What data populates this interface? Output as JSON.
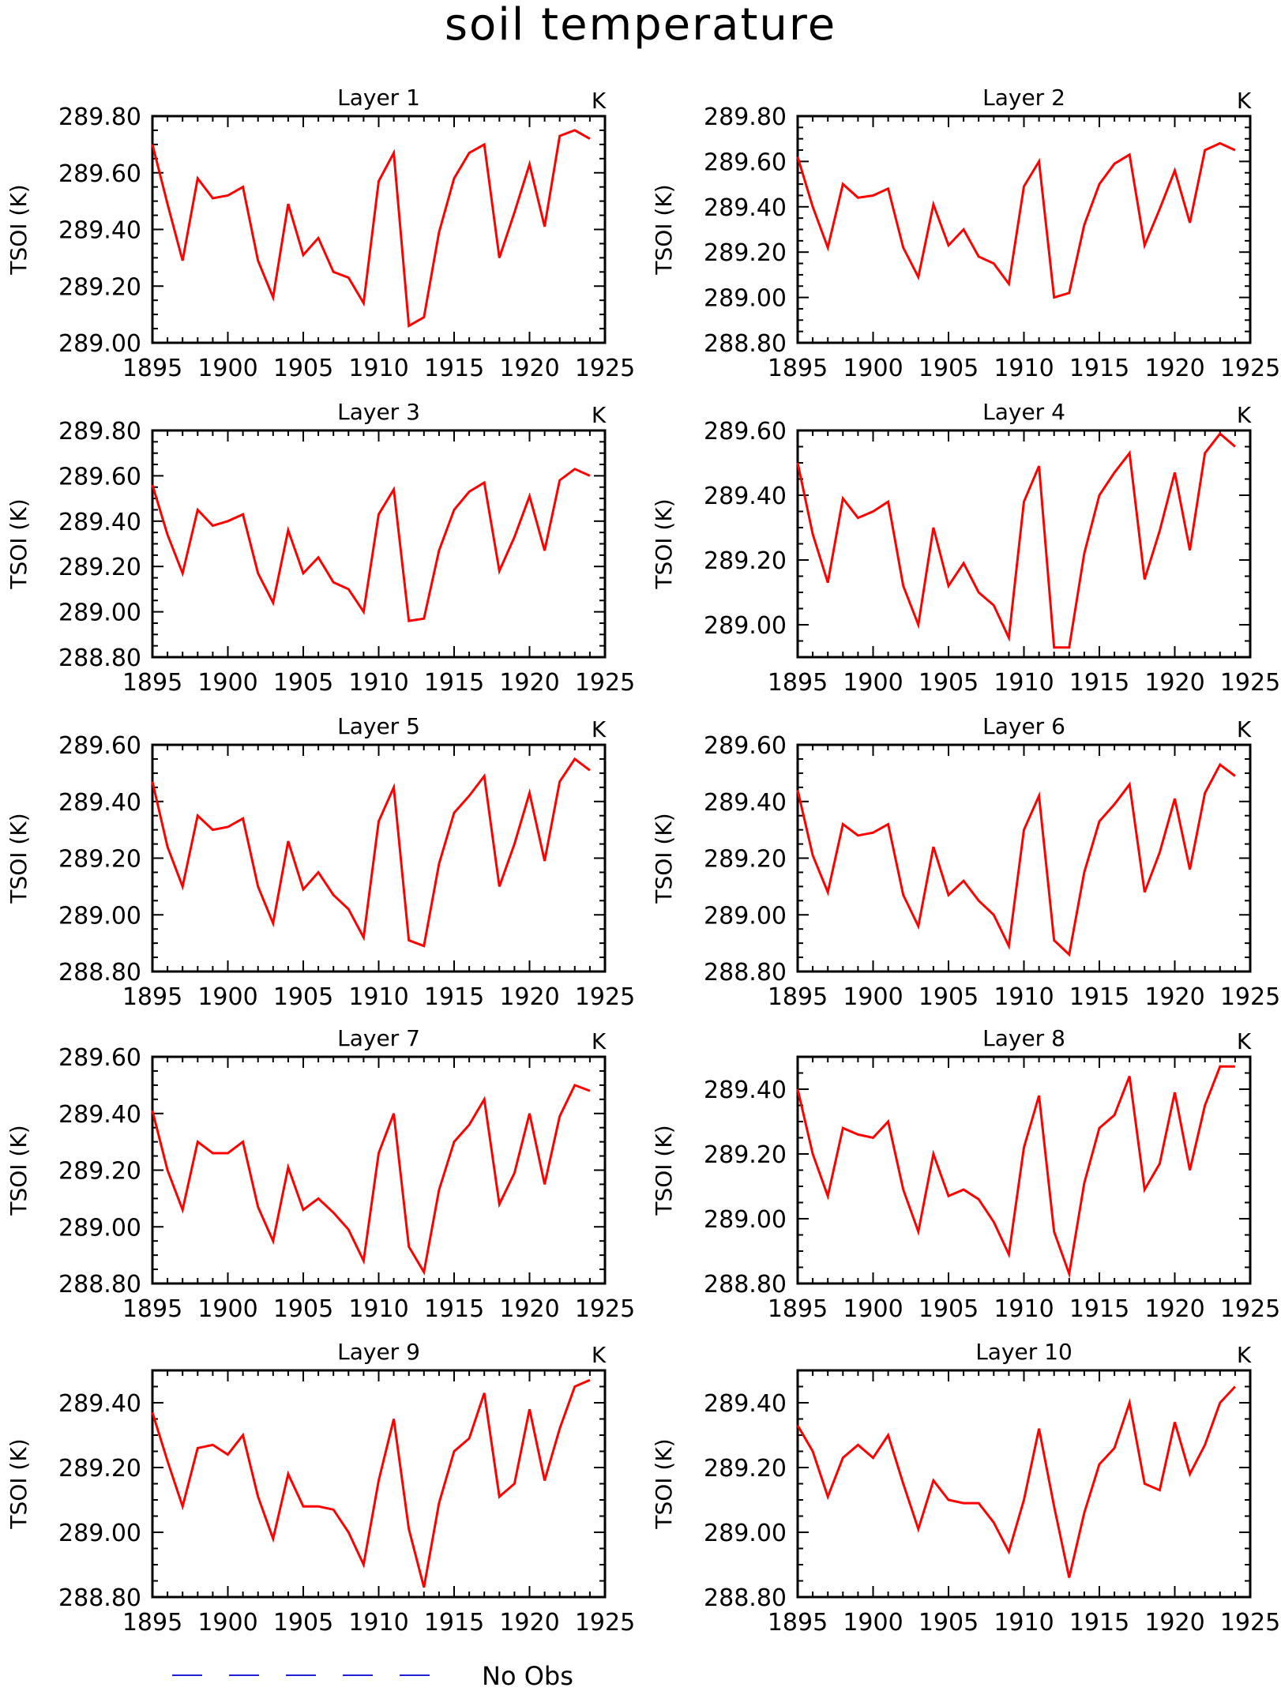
{
  "page_title": "soil temperature",
  "legend": {
    "line_color": "#1f1fd6",
    "label": "No Obs"
  },
  "colors": {
    "series": "#ff0000",
    "axes": "#000000"
  },
  "chart_data": [
    {
      "type": "line",
      "title": "Layer 1",
      "units": "K",
      "ylabel": "TSOI  (K)",
      "xlim": [
        1895,
        1925
      ],
      "xticks": [
        1895,
        1900,
        1905,
        1910,
        1915,
        1920,
        1925
      ],
      "ylim": [
        289.0,
        289.8
      ],
      "yticks": [
        "289.00",
        "289.20",
        "289.40",
        "289.60",
        "289.80"
      ],
      "x": [
        1895,
        1896,
        1897,
        1898,
        1899,
        1900,
        1901,
        1902,
        1903,
        1904,
        1905,
        1906,
        1907,
        1908,
        1909,
        1910,
        1911,
        1912,
        1913,
        1914,
        1915,
        1916,
        1917,
        1918,
        1919,
        1920,
        1921,
        1922,
        1923,
        1924
      ],
      "values": [
        289.7,
        289.49,
        289.29,
        289.58,
        289.51,
        289.52,
        289.55,
        289.29,
        289.16,
        289.49,
        289.31,
        289.37,
        289.25,
        289.23,
        289.14,
        289.57,
        289.67,
        289.06,
        289.09,
        289.39,
        289.58,
        289.67,
        289.7,
        289.3,
        289.46,
        289.63,
        289.41,
        289.73,
        289.75,
        289.72
      ]
    },
    {
      "type": "line",
      "title": "Layer 2",
      "units": "K",
      "ylabel": "TSOI  (K)",
      "xlim": [
        1895,
        1925
      ],
      "xticks": [
        1895,
        1900,
        1905,
        1910,
        1915,
        1920,
        1925
      ],
      "ylim": [
        288.8,
        289.8
      ],
      "yticks": [
        "288.80",
        "289.00",
        "289.20",
        "289.40",
        "289.60",
        "289.80"
      ],
      "x": [
        1895,
        1896,
        1897,
        1898,
        1899,
        1900,
        1901,
        1902,
        1903,
        1904,
        1905,
        1906,
        1907,
        1908,
        1909,
        1910,
        1911,
        1912,
        1913,
        1914,
        1915,
        1916,
        1917,
        1918,
        1919,
        1920,
        1921,
        1922,
        1923,
        1924
      ],
      "values": [
        289.62,
        289.4,
        289.22,
        289.5,
        289.44,
        289.45,
        289.48,
        289.22,
        289.09,
        289.41,
        289.23,
        289.3,
        289.18,
        289.15,
        289.06,
        289.49,
        289.6,
        289.0,
        289.02,
        289.32,
        289.5,
        289.59,
        289.63,
        289.23,
        289.39,
        289.56,
        289.33,
        289.65,
        289.68,
        289.65
      ]
    },
    {
      "type": "line",
      "title": "Layer 3",
      "units": "K",
      "ylabel": "TSOI  (K)",
      "xlim": [
        1895,
        1925
      ],
      "xticks": [
        1895,
        1900,
        1905,
        1910,
        1915,
        1920,
        1925
      ],
      "ylim": [
        288.8,
        289.8
      ],
      "yticks": [
        "288.80",
        "289.00",
        "289.20",
        "289.40",
        "289.60",
        "289.80"
      ],
      "x": [
        1895,
        1896,
        1897,
        1898,
        1899,
        1900,
        1901,
        1902,
        1903,
        1904,
        1905,
        1906,
        1907,
        1908,
        1909,
        1910,
        1911,
        1912,
        1913,
        1914,
        1915,
        1916,
        1917,
        1918,
        1919,
        1920,
        1921,
        1922,
        1923,
        1924
      ],
      "values": [
        289.56,
        289.34,
        289.17,
        289.45,
        289.38,
        289.4,
        289.43,
        289.17,
        289.04,
        289.36,
        289.17,
        289.24,
        289.13,
        289.1,
        289.0,
        289.43,
        289.54,
        288.96,
        288.97,
        289.27,
        289.45,
        289.53,
        289.57,
        289.18,
        289.33,
        289.51,
        289.27,
        289.58,
        289.63,
        289.6
      ]
    },
    {
      "type": "line",
      "title": "Layer 4",
      "units": "K",
      "ylabel": "TSOI  (K)",
      "xlim": [
        1895,
        1925
      ],
      "xticks": [
        1895,
        1900,
        1905,
        1910,
        1915,
        1920,
        1925
      ],
      "ylim": [
        288.9,
        289.6
      ],
      "yticks": [
        "289.00",
        "289.20",
        "289.40",
        "289.60"
      ],
      "x": [
        1895,
        1896,
        1897,
        1898,
        1899,
        1900,
        1901,
        1902,
        1903,
        1904,
        1905,
        1906,
        1907,
        1908,
        1909,
        1910,
        1911,
        1912,
        1913,
        1914,
        1915,
        1916,
        1917,
        1918,
        1919,
        1920,
        1921,
        1922,
        1923,
        1924
      ],
      "values": [
        289.5,
        289.28,
        289.13,
        289.39,
        289.33,
        289.35,
        289.38,
        289.12,
        289.0,
        289.3,
        289.12,
        289.19,
        289.1,
        289.06,
        288.96,
        289.38,
        289.49,
        288.93,
        288.93,
        289.22,
        289.4,
        289.47,
        289.53,
        289.14,
        289.29,
        289.47,
        289.23,
        289.53,
        289.59,
        289.55
      ]
    },
    {
      "type": "line",
      "title": "Layer 5",
      "units": "K",
      "ylabel": "TSOI  (K)",
      "xlim": [
        1895,
        1925
      ],
      "xticks": [
        1895,
        1900,
        1905,
        1910,
        1915,
        1920,
        1925
      ],
      "ylim": [
        288.8,
        289.6
      ],
      "yticks": [
        "288.80",
        "289.00",
        "289.20",
        "289.40",
        "289.60"
      ],
      "x": [
        1895,
        1896,
        1897,
        1898,
        1899,
        1900,
        1901,
        1902,
        1903,
        1904,
        1905,
        1906,
        1907,
        1908,
        1909,
        1910,
        1911,
        1912,
        1913,
        1914,
        1915,
        1916,
        1917,
        1918,
        1919,
        1920,
        1921,
        1922,
        1923,
        1924
      ],
      "values": [
        289.47,
        289.24,
        289.1,
        289.35,
        289.3,
        289.31,
        289.34,
        289.1,
        288.97,
        289.26,
        289.09,
        289.15,
        289.07,
        289.02,
        288.92,
        289.33,
        289.45,
        288.91,
        288.89,
        289.18,
        289.36,
        289.42,
        289.49,
        289.1,
        289.25,
        289.43,
        289.19,
        289.47,
        289.55,
        289.51
      ]
    },
    {
      "type": "line",
      "title": "Layer 6",
      "units": "K",
      "ylabel": "TSOI  (K)",
      "xlim": [
        1895,
        1925
      ],
      "xticks": [
        1895,
        1900,
        1905,
        1910,
        1915,
        1920,
        1925
      ],
      "ylim": [
        288.8,
        289.6
      ],
      "yticks": [
        "288.80",
        "289.00",
        "289.20",
        "289.40",
        "289.60"
      ],
      "x": [
        1895,
        1896,
        1897,
        1898,
        1899,
        1900,
        1901,
        1902,
        1903,
        1904,
        1905,
        1906,
        1907,
        1908,
        1909,
        1910,
        1911,
        1912,
        1913,
        1914,
        1915,
        1916,
        1917,
        1918,
        1919,
        1920,
        1921,
        1922,
        1923,
        1924
      ],
      "values": [
        289.44,
        289.21,
        289.08,
        289.32,
        289.28,
        289.29,
        289.32,
        289.07,
        288.96,
        289.24,
        289.07,
        289.12,
        289.05,
        289.0,
        288.89,
        289.3,
        289.42,
        288.91,
        288.86,
        289.15,
        289.33,
        289.39,
        289.46,
        289.08,
        289.22,
        289.41,
        289.16,
        289.43,
        289.53,
        289.49
      ]
    },
    {
      "type": "line",
      "title": "Layer 7",
      "units": "K",
      "ylabel": "TSOI  (K)",
      "xlim": [
        1895,
        1925
      ],
      "xticks": [
        1895,
        1900,
        1905,
        1910,
        1915,
        1920,
        1925
      ],
      "ylim": [
        288.8,
        289.6
      ],
      "yticks": [
        "288.80",
        "289.00",
        "289.20",
        "289.40",
        "289.60"
      ],
      "x": [
        1895,
        1896,
        1897,
        1898,
        1899,
        1900,
        1901,
        1902,
        1903,
        1904,
        1905,
        1906,
        1907,
        1908,
        1909,
        1910,
        1911,
        1912,
        1913,
        1914,
        1915,
        1916,
        1917,
        1918,
        1919,
        1920,
        1921,
        1922,
        1923,
        1924
      ],
      "values": [
        289.41,
        289.2,
        289.06,
        289.3,
        289.26,
        289.26,
        289.3,
        289.07,
        288.95,
        289.21,
        289.06,
        289.1,
        289.05,
        288.99,
        288.88,
        289.26,
        289.4,
        288.93,
        288.84,
        289.13,
        289.3,
        289.36,
        289.45,
        289.08,
        289.19,
        289.4,
        289.15,
        289.39,
        289.5,
        289.48
      ]
    },
    {
      "type": "line",
      "title": "Layer 8",
      "units": "K",
      "ylabel": "TSOI  (K)",
      "xlim": [
        1895,
        1925
      ],
      "xticks": [
        1895,
        1900,
        1905,
        1910,
        1915,
        1920,
        1925
      ],
      "ylim": [
        288.8,
        289.5
      ],
      "yticks": [
        "288.80",
        "289.00",
        "289.20",
        "289.40"
      ],
      "x": [
        1895,
        1896,
        1897,
        1898,
        1899,
        1900,
        1901,
        1902,
        1903,
        1904,
        1905,
        1906,
        1907,
        1908,
        1909,
        1910,
        1911,
        1912,
        1913,
        1914,
        1915,
        1916,
        1917,
        1918,
        1919,
        1920,
        1921,
        1922,
        1923,
        1924
      ],
      "values": [
        289.4,
        289.2,
        289.07,
        289.28,
        289.26,
        289.25,
        289.3,
        289.09,
        288.96,
        289.2,
        289.07,
        289.09,
        289.06,
        288.99,
        288.89,
        289.22,
        289.38,
        288.96,
        288.83,
        289.11,
        289.28,
        289.32,
        289.44,
        289.09,
        289.17,
        289.39,
        289.15,
        289.35,
        289.47,
        289.47
      ]
    },
    {
      "type": "line",
      "title": "Layer 9",
      "units": "K",
      "ylabel": "TSOI  (K)",
      "xlim": [
        1895,
        1925
      ],
      "xticks": [
        1895,
        1900,
        1905,
        1910,
        1915,
        1920,
        1925
      ],
      "ylim": [
        288.8,
        289.5
      ],
      "yticks": [
        "288.80",
        "289.00",
        "289.20",
        "289.40"
      ],
      "x": [
        1895,
        1896,
        1897,
        1898,
        1899,
        1900,
        1901,
        1902,
        1903,
        1904,
        1905,
        1906,
        1907,
        1908,
        1909,
        1910,
        1911,
        1912,
        1913,
        1914,
        1915,
        1916,
        1917,
        1918,
        1919,
        1920,
        1921,
        1922,
        1923,
        1924
      ],
      "values": [
        289.37,
        289.22,
        289.08,
        289.26,
        289.27,
        289.24,
        289.3,
        289.11,
        288.98,
        289.18,
        289.08,
        289.08,
        289.07,
        289.0,
        288.9,
        289.16,
        289.35,
        289.01,
        288.83,
        289.09,
        289.25,
        289.29,
        289.43,
        289.11,
        289.15,
        289.38,
        289.16,
        289.32,
        289.45,
        289.47
      ]
    },
    {
      "type": "line",
      "title": "Layer 10",
      "units": "K",
      "ylabel": "TSOI  (K)",
      "xlim": [
        1895,
        1925
      ],
      "xticks": [
        1895,
        1900,
        1905,
        1910,
        1915,
        1920,
        1925
      ],
      "ylim": [
        288.8,
        289.5
      ],
      "yticks": [
        "288.80",
        "289.00",
        "289.20",
        "289.40"
      ],
      "x": [
        1895,
        1896,
        1897,
        1898,
        1899,
        1900,
        1901,
        1902,
        1903,
        1904,
        1905,
        1906,
        1907,
        1908,
        1909,
        1910,
        1911,
        1912,
        1913,
        1914,
        1915,
        1916,
        1917,
        1918,
        1919,
        1920,
        1921,
        1922,
        1923,
        1924
      ],
      "values": [
        289.33,
        289.25,
        289.11,
        289.23,
        289.27,
        289.23,
        289.3,
        289.15,
        289.01,
        289.16,
        289.1,
        289.09,
        289.09,
        289.03,
        288.94,
        289.1,
        289.32,
        289.08,
        288.86,
        289.06,
        289.21,
        289.26,
        289.4,
        289.15,
        289.13,
        289.34,
        289.18,
        289.27,
        289.4,
        289.45
      ]
    }
  ]
}
